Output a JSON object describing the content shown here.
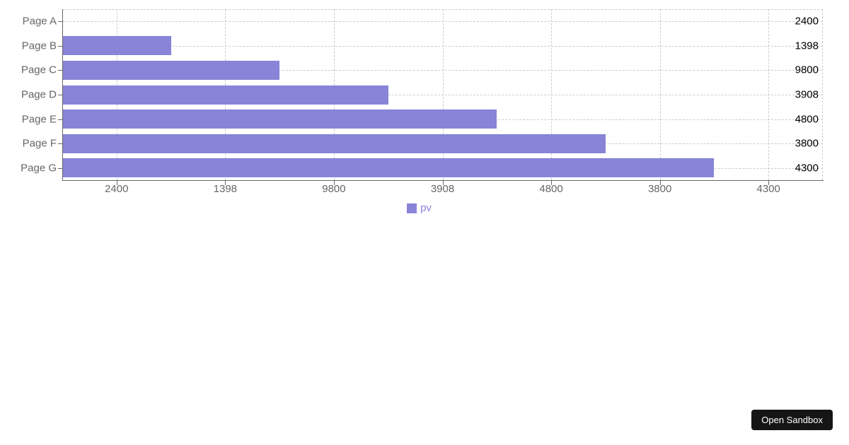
{
  "chart_data": {
    "type": "bar",
    "orientation": "horizontal",
    "title": "",
    "categories": [
      "Page A",
      "Page B",
      "Page C",
      "Page D",
      "Page E",
      "Page F",
      "Page G"
    ],
    "series": [
      {
        "name": "pv",
        "color": "#8884d8",
        "values": [
          2400,
          1398,
          9800,
          3908,
          4800,
          3800,
          4300
        ]
      }
    ],
    "x_axis": {
      "type": "category",
      "tick_labels": [
        "2400",
        "1398",
        "9800",
        "3908",
        "4800",
        "3800",
        "4300"
      ]
    },
    "y_axis": {
      "type": "category",
      "tick_labels": [
        "Page A",
        "Page B",
        "Page C",
        "Page D",
        "Page E",
        "Page F",
        "Page G"
      ]
    },
    "value_labels": [
      "2400",
      "1398",
      "9800",
      "3908",
      "4800",
      "3800",
      "4300"
    ],
    "legend": {
      "position": "bottom-center",
      "entries": [
        {
          "label": "pv",
          "color": "#8884d8"
        }
      ]
    },
    "grid": {
      "visible": true,
      "style": "dashed",
      "color": "#cccccc"
    },
    "colors": {
      "bar": "#8884d8",
      "axis": "#666666",
      "tick_text": "#666666",
      "value_label_text": "#000000"
    }
  },
  "sandbox_button": {
    "label": "Open Sandbox",
    "background": "#151515",
    "text_color": "#ffffff"
  }
}
